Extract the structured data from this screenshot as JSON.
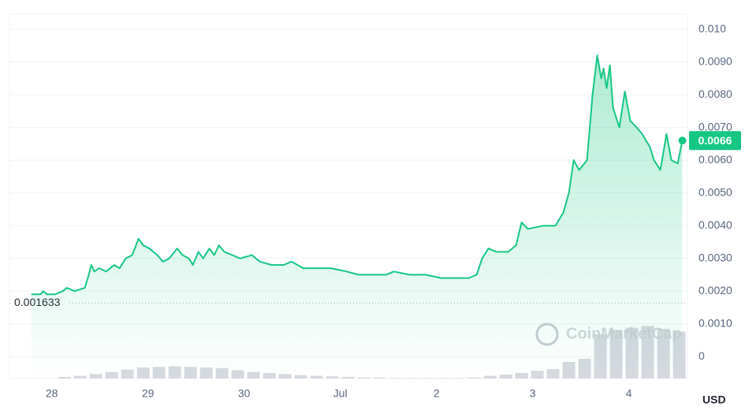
{
  "chart_data": {
    "type": "area",
    "color": "#16c784",
    "x": [
      -0.213,
      -0.115,
      -0.09,
      -0.049,
      0.033,
      0.115,
      0.156,
      0.238,
      0.344,
      0.385,
      0.41,
      0.443,
      0.492,
      0.566,
      0.648,
      0.705,
      0.77,
      0.836,
      0.902,
      0.951,
      1.016,
      1.098,
      1.156,
      1.221,
      1.303,
      1.361,
      1.426,
      1.467,
      1.525,
      1.574,
      1.639,
      1.689,
      1.738,
      1.795,
      1.877,
      1.959,
      2.082,
      2.164,
      2.287,
      2.41,
      2.492,
      2.615,
      2.738,
      2.902,
      3.066,
      3.189,
      3.311,
      3.475,
      3.557,
      3.721,
      3.885,
      4.049,
      4.172,
      4.336,
      4.418,
      4.475,
      4.541,
      4.623,
      4.746,
      4.828,
      4.885,
      4.951,
      5.115,
      5.238,
      5.32,
      5.377,
      5.426,
      5.484,
      5.566,
      5.623,
      5.672,
      5.713,
      5.738,
      5.77,
      5.803,
      5.836,
      5.902,
      5.959,
      6.016,
      6.082,
      6.139,
      6.221,
      6.262,
      6.328,
      6.393,
      6.443,
      6.508,
      6.557
    ],
    "values": [
      0.0019,
      0.0019,
      0.002,
      0.0019,
      0.0019,
      0.002,
      0.0021,
      0.002,
      0.0021,
      0.0025,
      0.0028,
      0.0026,
      0.0027,
      0.0026,
      0.0028,
      0.0027,
      0.003,
      0.0031,
      0.0036,
      0.0034,
      0.0033,
      0.0031,
      0.0029,
      0.003,
      0.0033,
      0.0031,
      0.003,
      0.0028,
      0.0032,
      0.003,
      0.0033,
      0.0031,
      0.0034,
      0.0032,
      0.0031,
      0.003,
      0.0031,
      0.0029,
      0.0028,
      0.0028,
      0.0029,
      0.0027,
      0.0027,
      0.0027,
      0.0026,
      0.0025,
      0.0025,
      0.0025,
      0.0026,
      0.0025,
      0.0025,
      0.0024,
      0.0024,
      0.0024,
      0.0025,
      0.003,
      0.0033,
      0.0032,
      0.0032,
      0.0034,
      0.0041,
      0.0039,
      0.004,
      0.004,
      0.0044,
      0.005,
      0.006,
      0.0057,
      0.006,
      0.008,
      0.0092,
      0.0085,
      0.0088,
      0.0082,
      0.0089,
      0.0076,
      0.007,
      0.0081,
      0.0072,
      0.007,
      0.0068,
      0.0064,
      0.006,
      0.0057,
      0.0068,
      0.006,
      0.0059,
      0.0066
    ],
    "volume_x": [
      0.131,
      0.295,
      0.459,
      0.623,
      0.787,
      0.951,
      1.115,
      1.279,
      1.443,
      1.607,
      1.77,
      1.934,
      2.098,
      2.262,
      2.426,
      2.59,
      2.754,
      2.918,
      3.082,
      3.246,
      3.41,
      3.574,
      3.738,
      3.902,
      4.066,
      4.23,
      4.393,
      4.557,
      4.721,
      4.885,
      5.049,
      5.213,
      5.377,
      5.541,
      5.705,
      5.869,
      6.033,
      6.197,
      6.361,
      6.525
    ],
    "volume_values": [
      3,
      5,
      8,
      12,
      16,
      20,
      21,
      22,
      21,
      20,
      19,
      15,
      12,
      10,
      8,
      6,
      5,
      4,
      3,
      2,
      2,
      1,
      1,
      1,
      1,
      1,
      2,
      5,
      7,
      10,
      14,
      17,
      30,
      36,
      80,
      88,
      92,
      95,
      90,
      85
    ],
    "volume_color": "#d5d9df",
    "y2lim": [
      0,
      100
    ],
    "xlim": [
      -0.44,
      6.61
    ],
    "xticks": [
      {
        "value": 0,
        "label": "28"
      },
      {
        "value": 1,
        "label": "29"
      },
      {
        "value": 2,
        "label": "30"
      },
      {
        "value": 3,
        "label": "Jul"
      },
      {
        "value": 4,
        "label": "2"
      },
      {
        "value": 5,
        "label": "3"
      },
      {
        "value": 6,
        "label": "4"
      }
    ],
    "ylim": [
      -0.00067,
      0.01046
    ],
    "yticks": [
      0,
      {
        "value": 0.001,
        "label": "0.0010"
      },
      {
        "value": 0.002,
        "label": "0.0020"
      },
      {
        "value": 0.003,
        "label": "0.0030"
      },
      {
        "value": 0.004,
        "label": "0.0040"
      },
      {
        "value": 0.005,
        "label": "0.0050"
      },
      {
        "value": 0.006,
        "label": "0.0060"
      },
      {
        "value": 0.007,
        "label": "0.0070"
      },
      {
        "value": 0.008,
        "label": "0.0080"
      },
      {
        "value": 0.009,
        "label": "0.0090"
      },
      {
        "value": 0.01,
        "label": "0.010"
      }
    ],
    "grid": true,
    "reference_line": {
      "value": 0.001633,
      "label": "0.001633"
    },
    "current_price": 0.0066,
    "currency": "USD",
    "watermark": "CoinMarketCap"
  }
}
